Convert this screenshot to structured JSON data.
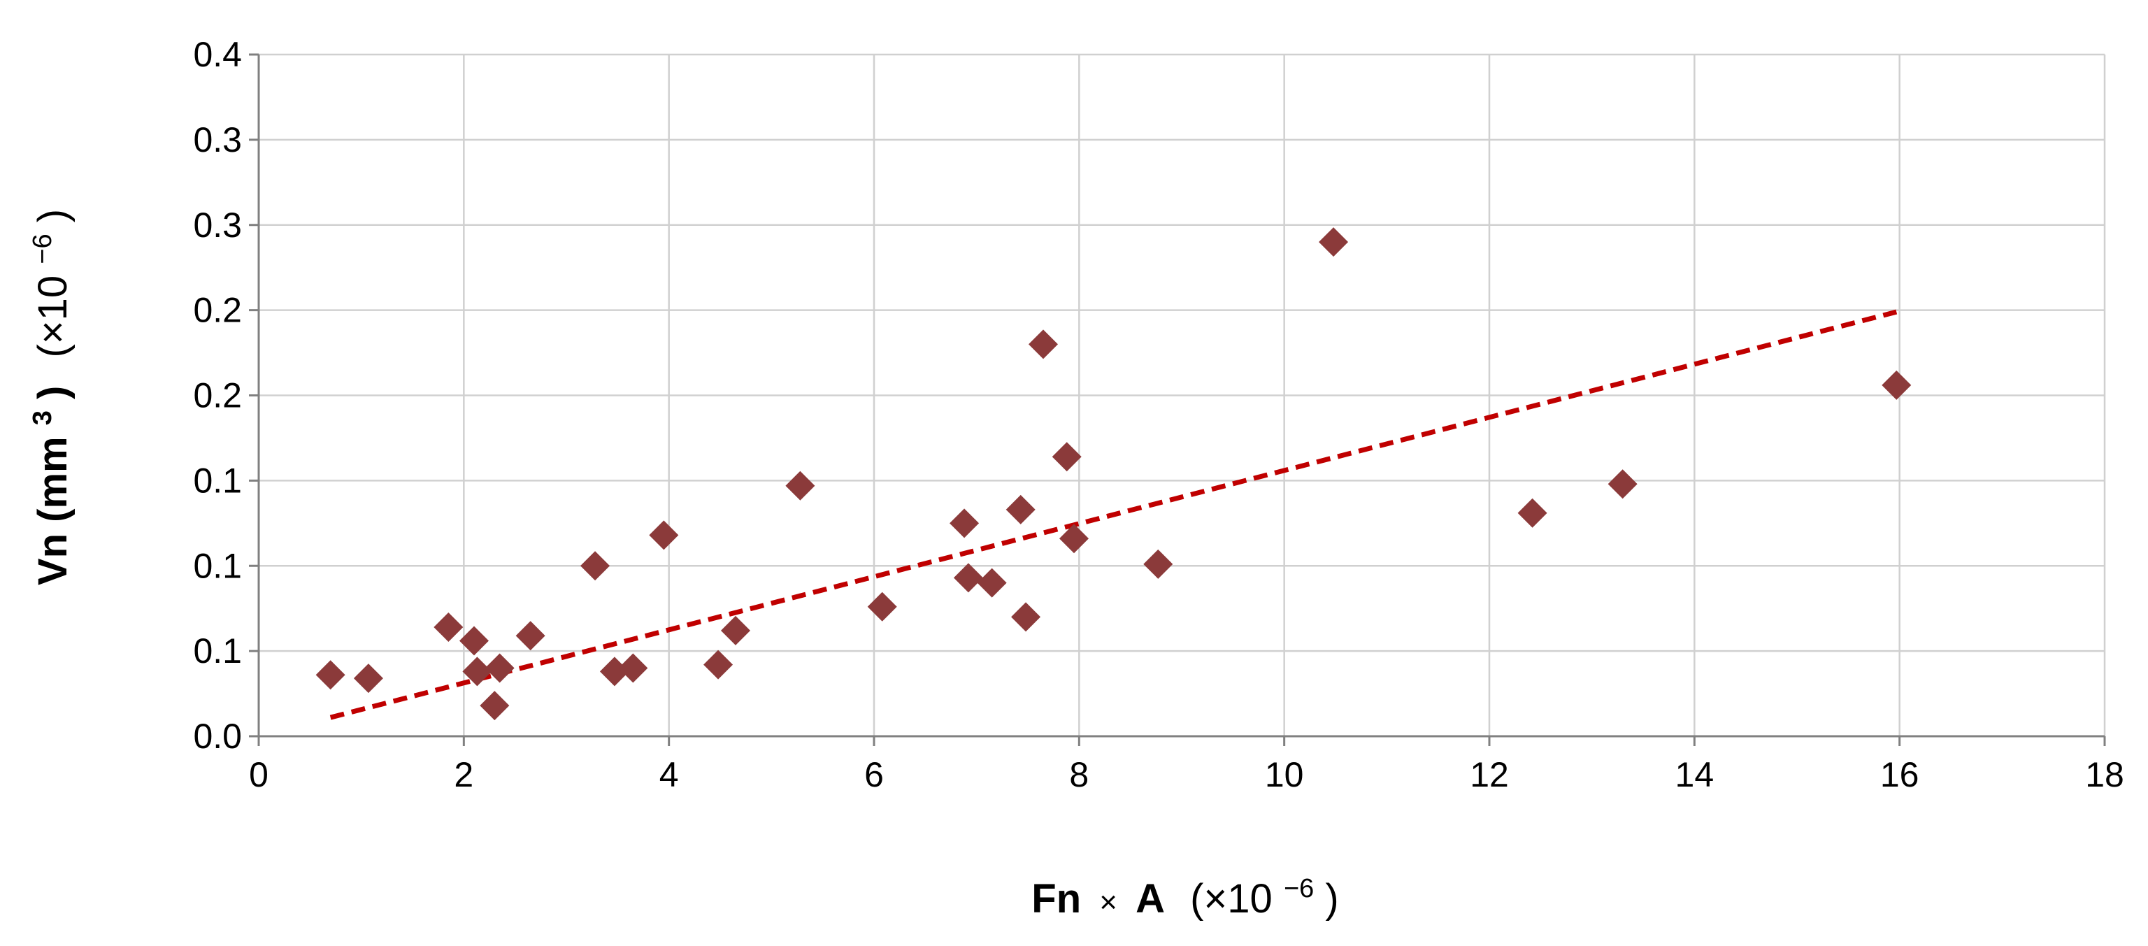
{
  "chart_data": {
    "type": "scatter",
    "xlabel": {
      "main": "Fn",
      "op": "×",
      "var": "A",
      "scale": "(×10",
      "exp": "−6",
      "close": ")"
    },
    "ylabel": {
      "main": "Vn (mm",
      "sup": "3",
      "mid": ")",
      "scale": "(×10",
      "exp": "−6",
      "close": ")"
    },
    "xlim": [
      0,
      18
    ],
    "ylim": [
      0,
      0.4
    ],
    "x_ticks": [
      0,
      2,
      4,
      6,
      8,
      10,
      12,
      14,
      16,
      18
    ],
    "x_tick_labels": [
      "0",
      "2",
      "4",
      "6",
      "8",
      "10",
      "12",
      "14",
      "16",
      "18"
    ],
    "y_ticks": [
      0.0,
      0.05,
      0.1,
      0.15,
      0.2,
      0.25,
      0.3,
      0.35,
      0.4
    ],
    "y_tick_labels": [
      "0.0",
      "0.1",
      "0.1",
      "0.1",
      "0.2",
      "0.2",
      "0.3",
      "0.3",
      "0.4"
    ],
    "grid": true,
    "legend": "none",
    "series": [
      {
        "marker": "diamond",
        "color": "#8B3A3A",
        "x": [
          0.7,
          1.07,
          1.85,
          2.1,
          2.13,
          2.3,
          2.35,
          2.65,
          3.28,
          3.47,
          3.65,
          3.95,
          4.48,
          4.65,
          5.28,
          6.08,
          6.88,
          6.92,
          7.15,
          7.43,
          7.48,
          7.65,
          7.88,
          7.95,
          8.77,
          10.48,
          12.42,
          13.3,
          15.97
        ],
        "y": [
          0.036,
          0.034,
          0.064,
          0.056,
          0.038,
          0.018,
          0.04,
          0.059,
          0.1,
          0.038,
          0.04,
          0.118,
          0.042,
          0.062,
          0.147,
          0.076,
          0.125,
          0.093,
          0.09,
          0.133,
          0.07,
          0.23,
          0.164,
          0.116,
          0.101,
          0.29,
          0.131,
          0.148,
          0.206
        ]
      }
    ],
    "trendline": {
      "style": "dashed",
      "color": "#C00000",
      "x": [
        0.7,
        15.97
      ],
      "y": [
        0.011,
        0.249
      ]
    }
  }
}
